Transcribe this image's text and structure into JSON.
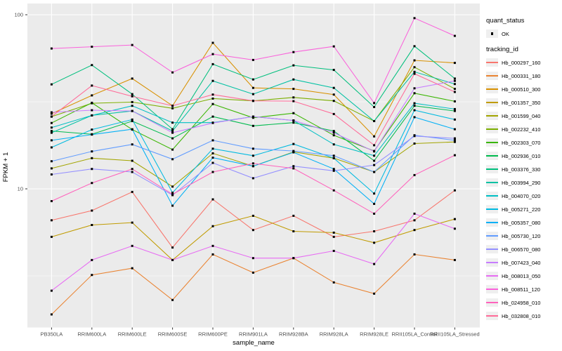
{
  "figure": {
    "x_axis_title": "sample_name",
    "y_axis_title": "FPKM + 1",
    "y_tick_labels": [
      "100",
      "10"
    ],
    "legend": {
      "quant_title": "quant_status",
      "quant_items": [
        {
          "label": "OK",
          "symbol": "black-point"
        }
      ],
      "tracking_title": "tracking_id"
    }
  },
  "chart_data": {
    "type": "line",
    "title": "",
    "xlabel": "sample_name",
    "ylabel": "FPKM + 1",
    "y_scale": "log10",
    "ylim": [
      1.5,
      110
    ],
    "y_major_ticks": [
      10,
      100
    ],
    "y_minor_gridlines": [
      3.1623,
      31.623
    ],
    "grid": true,
    "legend_position": "right",
    "point_shape": "small-black-square",
    "panel_bg": "#EBEBEB",
    "grid_color": "#FFFFFF",
    "axis_text_color": "#4D4D4D",
    "categories": [
      "PB350LA",
      "RRIM600LA",
      "RRIM600LE",
      "RRIM600SE",
      "RRIM600PE",
      "RRIM901LA",
      "RRIM928BA",
      "RRIM928LA",
      "RRIM928LE",
      "RRII105LA_Control",
      "RRII105LA_Stressed"
    ],
    "series": [
      {
        "name": "Hb_000297_160",
        "color": "#F8766D",
        "values": [
          6.6,
          7.5,
          9.6,
          4.6,
          8.7,
          5.8,
          7.0,
          5.3,
          5.7,
          6.6,
          9.8
        ]
      },
      {
        "name": "Hb_000331_180",
        "color": "#EA8331",
        "values": [
          1.9,
          3.2,
          3.5,
          2.3,
          4.2,
          3.3,
          4.0,
          2.9,
          2.5,
          4.2,
          3.9
        ]
      },
      {
        "name": "Hb_000510_300",
        "color": "#D89000",
        "values": [
          27,
          34.4,
          43,
          30,
          69,
          38,
          37.5,
          34.8,
          20,
          54.7,
          52.9
        ]
      },
      {
        "name": "Hb_001357_350",
        "color": "#C09B00",
        "values": [
          5.3,
          6.2,
          6.4,
          3.9,
          6.1,
          7.0,
          5.7,
          5.6,
          4.9,
          5.8,
          6.7
        ]
      },
      {
        "name": "Hb_001599_040",
        "color": "#A3A500",
        "values": [
          13.1,
          15,
          14.5,
          10.3,
          16,
          13.5,
          16.3,
          15,
          12.5,
          18.2,
          18.6
        ]
      },
      {
        "name": "Hb_002232_410",
        "color": "#7CAE00",
        "values": [
          26,
          31,
          31.5,
          29,
          33,
          32,
          33.5,
          32,
          24.5,
          50,
          37.5
        ]
      },
      {
        "name": "Hb_002303_070",
        "color": "#39B600",
        "values": [
          23.9,
          31.2,
          21.9,
          16.8,
          30.7,
          25.6,
          27.2,
          20.3,
          16.5,
          35.4,
          31.8
        ]
      },
      {
        "name": "Hb_002936_010",
        "color": "#00BB4E",
        "values": [
          21.5,
          20.6,
          24.5,
          19.5,
          26,
          23,
          24,
          21.5,
          14.5,
          30,
          28
        ]
      },
      {
        "name": "Hb_003376_330",
        "color": "#00BF7D",
        "values": [
          39.8,
          51.4,
          35,
          22,
          52,
          42.5,
          51.2,
          48.2,
          29.5,
          66,
          43
        ]
      },
      {
        "name": "Hb_003994_290",
        "color": "#00C1A3",
        "values": [
          21,
          26.4,
          28,
          21.5,
          41.7,
          35,
          42.5,
          38,
          24.5,
          47,
          40
        ]
      },
      {
        "name": "Hb_004070_020",
        "color": "#00BFC4",
        "values": [
          22.5,
          26.4,
          30,
          24,
          24,
          26,
          24.7,
          18,
          15.5,
          31,
          28.7
        ]
      },
      {
        "name": "Hb_005271_220",
        "color": "#00BAE0",
        "values": [
          17.3,
          21.9,
          25,
          9.5,
          17,
          15.5,
          18.1,
          15,
          9.4,
          28.3,
          25
        ]
      },
      {
        "name": "Hb_005357_080",
        "color": "#00B0F6",
        "values": [
          19,
          20.5,
          22,
          8,
          15.1,
          13.5,
          16.2,
          13,
          8.2,
          25.8,
          22
        ]
      },
      {
        "name": "Hb_005730_120",
        "color": "#619CFF",
        "values": [
          14.4,
          16.4,
          18,
          14.8,
          19,
          17,
          16.5,
          15.5,
          12.5,
          20.3,
          19
        ]
      },
      {
        "name": "Hb_006570_080",
        "color": "#9590FF",
        "values": [
          12.1,
          13,
          12.5,
          9.2,
          14.1,
          11.5,
          13.5,
          12.7,
          13.7,
          20.1,
          19.5
        ]
      },
      {
        "name": "Hb_007423_040",
        "color": "#C77CFF",
        "values": [
          27.5,
          28.3,
          28,
          21,
          23.9,
          26,
          24.7,
          21,
          16.4,
          37.8,
          41.7
        ]
      },
      {
        "name": "Hb_008013_050",
        "color": "#E76BF3",
        "values": [
          2.6,
          3.9,
          4.7,
          3.9,
          4.7,
          4.0,
          4.0,
          4.4,
          3.7,
          7.2,
          5.9
        ]
      },
      {
        "name": "Hb_008511_120",
        "color": "#FA62DB",
        "values": [
          64,
          65.5,
          67,
          46.6,
          59.4,
          55,
          61,
          65.8,
          31.1,
          95.6,
          75.6
        ]
      },
      {
        "name": "Hb_024958_010",
        "color": "#FF62BC",
        "values": [
          8.5,
          10.8,
          13,
          9.3,
          12.5,
          14,
          13.1,
          9.8,
          7.2,
          12,
          15.6
        ]
      },
      {
        "name": "Hb_032808_010",
        "color": "#FF6A98",
        "values": [
          26,
          39.2,
          34,
          30,
          34.8,
          32,
          31.9,
          26.9,
          17.8,
          45.8,
          36
        ]
      }
    ]
  }
}
